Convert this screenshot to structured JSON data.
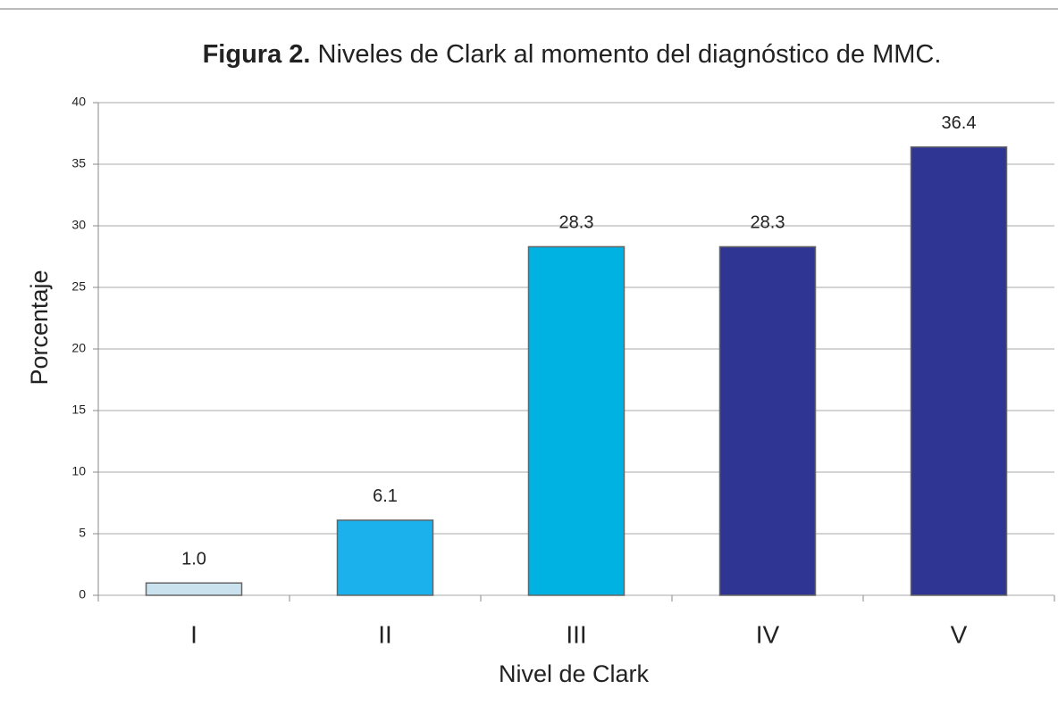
{
  "chart_data": {
    "type": "bar",
    "figure_label": "Figura 2.",
    "title": "Niveles de Clark al momento del diagnóstico de MMC.",
    "x_label": "Nivel de Clark",
    "y_label": "Porcentaje",
    "categories": [
      "I",
      "II",
      "III",
      "IV",
      "V"
    ],
    "values": [
      1.0,
      6.1,
      28.3,
      28.3,
      36.4
    ],
    "value_labels": [
      "1.0",
      "6.1",
      "28.3",
      "28.3",
      "36.4"
    ],
    "colors": [
      "#c9e2ee",
      "#1ab1ec",
      "#00b2e2",
      "#2e3592",
      "#2e3592"
    ],
    "ylim": [
      0,
      40
    ],
    "yticks": [
      0,
      5,
      10,
      15,
      20,
      25,
      30,
      35,
      40
    ],
    "grid": true
  }
}
